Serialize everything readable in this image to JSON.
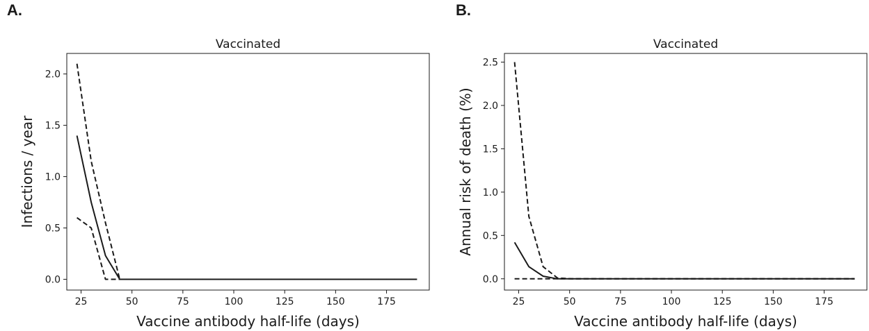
{
  "panels": [
    {
      "letter": "A."
    },
    {
      "letter": "B."
    }
  ],
  "chart_data": [
    {
      "type": "line",
      "title": "Vaccinated",
      "xlabel": "Vaccine antibody half-life (days)",
      "ylabel": "Infections / year",
      "xlim": [
        18,
        196
      ],
      "ylim": [
        -0.105,
        2.2
      ],
      "xticks": [
        25,
        50,
        75,
        100,
        125,
        150,
        175
      ],
      "xtick_labels": [
        "25",
        "50",
        "75",
        "100",
        "125",
        "150",
        "175"
      ],
      "yticks": [
        0.0,
        0.5,
        1.0,
        1.5,
        2.0
      ],
      "ytick_labels": [
        "0.0",
        "0.5",
        "1.0",
        "1.5",
        "2.0"
      ],
      "grid": false,
      "series": [
        {
          "style": "solid",
          "color": "#1a1a1a",
          "x": [
            23,
            30,
            37,
            44,
            51,
            100,
            150,
            190
          ],
          "y": [
            1.4,
            0.75,
            0.23,
            0.0,
            0.0,
            0.0,
            0.0,
            0.0
          ]
        },
        {
          "style": "dashed",
          "color": "#1a1a1a",
          "x": [
            23,
            30,
            37,
            44,
            51,
            100,
            150,
            190
          ],
          "y": [
            2.1,
            1.15,
            0.55,
            0.0,
            0.0,
            0.0,
            0.0,
            0.0
          ]
        },
        {
          "style": "dashed",
          "color": "#1a1a1a",
          "x": [
            23,
            30,
            37,
            44,
            51,
            100,
            150,
            190
          ],
          "y": [
            0.6,
            0.5,
            0.0,
            0.0,
            0.0,
            0.0,
            0.0,
            0.0
          ]
        }
      ]
    },
    {
      "type": "line",
      "title": "Vaccinated",
      "xlabel": "Vaccine antibody half-life (days)",
      "ylabel": "Annual risk of death (%)",
      "xlim": [
        18,
        196
      ],
      "ylim": [
        -0.13,
        2.6
      ],
      "xticks": [
        25,
        50,
        75,
        100,
        125,
        150,
        175
      ],
      "xtick_labels": [
        "25",
        "50",
        "75",
        "100",
        "125",
        "150",
        "175"
      ],
      "yticks": [
        0.0,
        0.5,
        1.0,
        1.5,
        2.0,
        2.5
      ],
      "ytick_labels": [
        "0.0",
        "0.5",
        "1.0",
        "1.5",
        "2.0",
        "2.5"
      ],
      "grid": false,
      "series": [
        {
          "style": "solid",
          "color": "#1a1a1a",
          "x": [
            23,
            30,
            37,
            44,
            51,
            100,
            150,
            190
          ],
          "y": [
            0.42,
            0.14,
            0.03,
            0.0,
            0.0,
            0.0,
            0.0,
            0.0
          ]
        },
        {
          "style": "dashed",
          "color": "#1a1a1a",
          "x": [
            23,
            30,
            37,
            44,
            51,
            100,
            150,
            190
          ],
          "y": [
            2.5,
            0.72,
            0.14,
            0.01,
            0.0,
            0.0,
            0.0,
            0.0
          ]
        },
        {
          "style": "dashed",
          "color": "#1a1a1a",
          "x": [
            23,
            30,
            37,
            44,
            51,
            100,
            150,
            190
          ],
          "y": [
            0.0,
            0.0,
            0.0,
            0.0,
            0.0,
            0.0,
            0.0,
            0.0
          ]
        }
      ]
    }
  ]
}
